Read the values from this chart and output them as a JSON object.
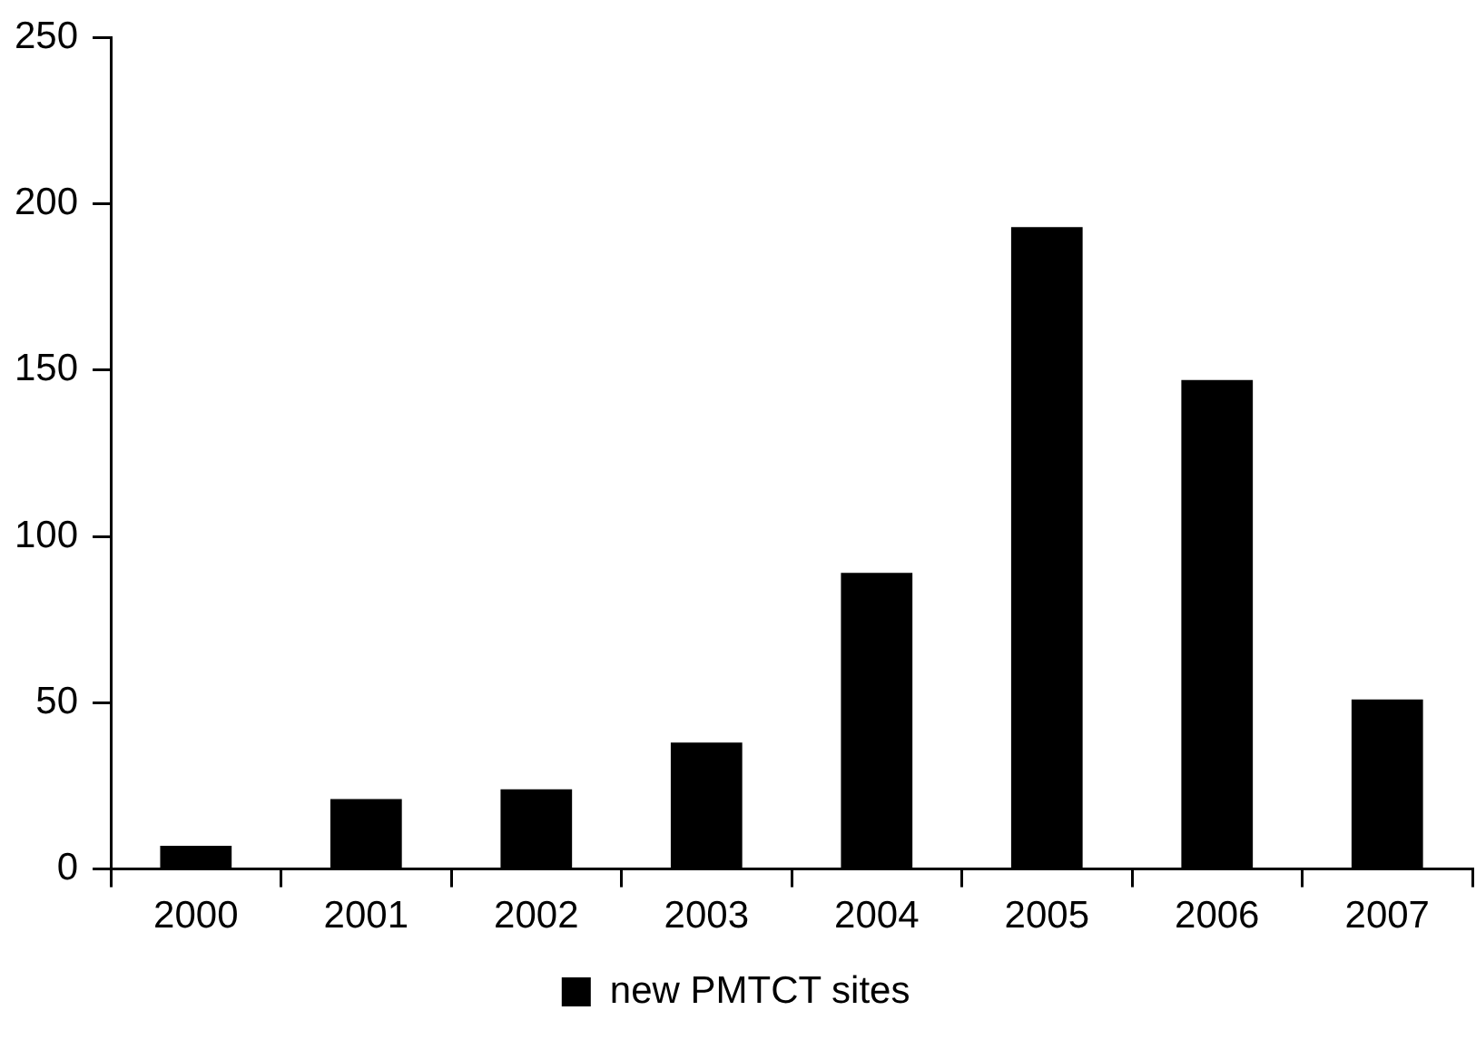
{
  "chart_data": {
    "type": "bar",
    "categories": [
      "2000",
      "2001",
      "2002",
      "2003",
      "2004",
      "2005",
      "2006",
      "2007"
    ],
    "series": [
      {
        "name": "new PMTCT sites",
        "color": "#000000",
        "values": [
          7,
          21,
          24,
          38,
          89,
          193,
          147,
          51
        ]
      }
    ],
    "ylim": [
      0,
      250
    ],
    "yticks": [
      0,
      50,
      100,
      150,
      200,
      250
    ],
    "grid": false,
    "legend": "bottom"
  }
}
